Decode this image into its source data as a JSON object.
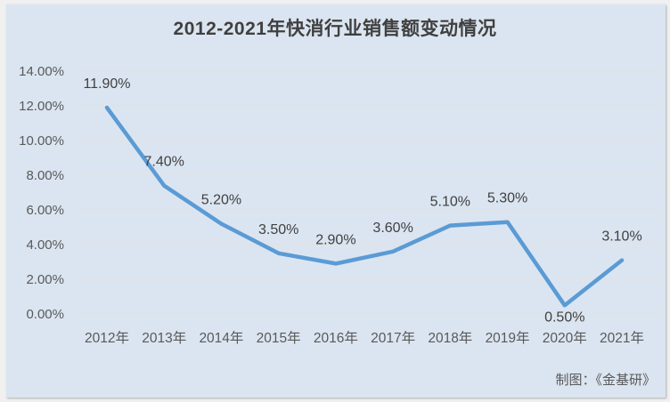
{
  "chart": {
    "title": "2012-2021年快消行业销售额变动情况",
    "attribution": "制图：《金基研》"
  },
  "chart_data": {
    "type": "line",
    "title": "2012-2021年快消行业销售额变动情况",
    "categories": [
      "2012年",
      "2013年",
      "2014年",
      "2015年",
      "2016年",
      "2017年",
      "2018年",
      "2019年",
      "2020年",
      "2021年"
    ],
    "values": [
      11.9,
      7.4,
      5.2,
      3.5,
      2.9,
      3.6,
      5.1,
      5.3,
      0.5,
      3.1
    ],
    "data_labels": [
      "11.90%",
      "7.40%",
      "5.20%",
      "3.50%",
      "2.90%",
      "3.60%",
      "5.10%",
      "5.30%",
      "0.50%",
      "3.10%"
    ],
    "label_position": [
      "above",
      "above",
      "above",
      "above",
      "above",
      "above",
      "above",
      "above",
      "below",
      "above"
    ],
    "xlabel": "",
    "ylabel": "",
    "ylim": [
      0,
      14
    ],
    "y_tick_values": [
      0,
      2,
      4,
      6,
      8,
      10,
      12,
      14
    ],
    "y_tick_labels": [
      "0.00%",
      "2.00%",
      "4.00%",
      "6.00%",
      "8.00%",
      "10.00%",
      "12.00%",
      "14.00%"
    ],
    "grid": true,
    "legend_position": "none",
    "line_color": "#5b9bd5",
    "background_color": "#dbe5f1",
    "gridline_color": "#e3e1da",
    "label_color": "#404040",
    "axis_text_color": "#595959"
  }
}
